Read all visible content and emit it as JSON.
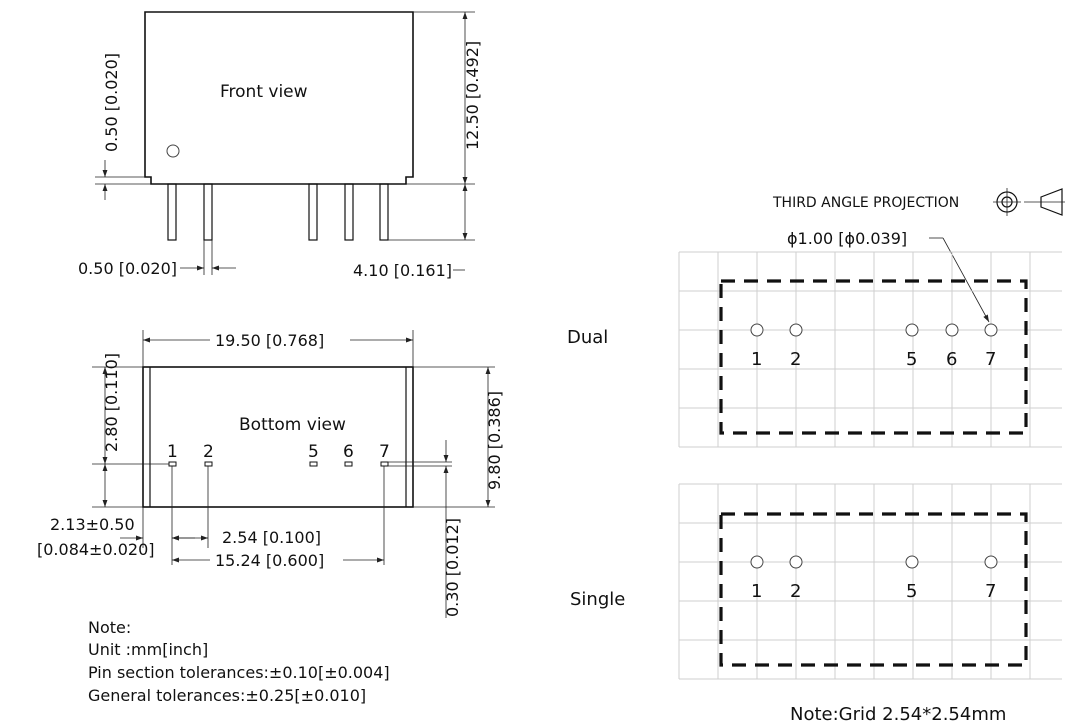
{
  "front_view": {
    "title": "Front view",
    "dim_top_gap": "0.50 [0.020]",
    "dim_height": "12.50 [0.492]",
    "dim_pin_width": "0.50 [0.020]",
    "dim_pin_length": "4.10 [0.161]"
  },
  "bottom_view": {
    "title": "Bottom view",
    "dim_width": "19.50 [0.768]",
    "dim_depth": "9.80 [0.386]",
    "dim_row_offset": "2.80 [0.110]",
    "dim_edge_line1": "2.13±0.50",
    "dim_edge_line2": "[0.084±0.020]",
    "dim_pitch": "2.54 [0.100]",
    "dim_span": "15.24 [0.600]",
    "dim_pin_thickness": "0.30 [0.012]",
    "pin_labels": [
      "1",
      "2",
      "5",
      "6",
      "7"
    ]
  },
  "notes": {
    "heading": "Note:",
    "unit": "Unit :mm[inch]",
    "pin_tolerance": "Pin section tolerances:±0.10[±0.004]",
    "general_tolerance": "General tolerances:±0.25[±0.010]"
  },
  "projection": {
    "label": "THIRD ANGLE PROJECTION"
  },
  "pcb_layouts": {
    "hole_dim": "ϕ1.00 [ϕ0.039]",
    "dual": {
      "label": "Dual",
      "pins": [
        "1",
        "2",
        "5",
        "6",
        "7"
      ]
    },
    "single": {
      "label": "Single",
      "pins": [
        "1",
        "2",
        "5",
        "7"
      ]
    },
    "grid_note": "Note:Grid 2.54*2.54mm"
  }
}
